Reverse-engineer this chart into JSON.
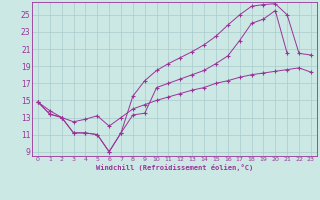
{
  "xlabel": "Windchill (Refroidissement éolien,°C)",
  "bg_color": "#cce8e4",
  "grid_color": "#aacccc",
  "line_color": "#993399",
  "xlim": [
    -0.5,
    23.5
  ],
  "ylim": [
    8.5,
    26.5
  ],
  "xticks": [
    0,
    1,
    2,
    3,
    4,
    5,
    6,
    7,
    8,
    9,
    10,
    11,
    12,
    13,
    14,
    15,
    16,
    17,
    18,
    19,
    20,
    21,
    22,
    23
  ],
  "yticks": [
    9,
    11,
    13,
    15,
    17,
    19,
    21,
    23,
    25
  ],
  "line1_x": [
    0,
    1,
    2,
    3,
    4,
    5,
    6,
    7,
    8,
    9,
    10,
    11,
    12,
    13,
    14,
    15,
    16,
    17,
    18,
    19,
    20,
    21
  ],
  "line1_y": [
    14.8,
    13.4,
    13.0,
    11.2,
    11.2,
    11.0,
    9.0,
    11.2,
    13.3,
    13.5,
    16.5,
    17.0,
    17.5,
    18.0,
    18.5,
    19.3,
    20.2,
    22.0,
    24.0,
    24.5,
    25.5,
    20.5
  ],
  "line2_x": [
    0,
    1,
    2,
    3,
    4,
    5,
    6,
    7,
    8,
    9,
    10,
    11,
    12,
    13,
    14,
    15,
    16,
    17,
    18,
    19,
    20,
    21,
    22,
    23
  ],
  "line2_y": [
    14.8,
    13.4,
    13.0,
    11.2,
    11.2,
    11.0,
    9.0,
    11.2,
    15.5,
    17.3,
    18.5,
    19.3,
    20.0,
    20.7,
    21.5,
    22.5,
    23.8,
    25.0,
    26.0,
    26.2,
    26.3,
    25.0,
    20.5,
    20.3
  ],
  "line3_x": [
    0,
    1,
    2,
    3,
    4,
    5,
    6,
    7,
    8,
    9,
    10,
    11,
    12,
    13,
    14,
    15,
    16,
    17,
    18,
    19,
    20,
    21,
    22,
    23
  ],
  "line3_y": [
    14.8,
    13.8,
    13.0,
    12.5,
    12.8,
    13.2,
    12.0,
    13.0,
    14.0,
    14.5,
    15.0,
    15.4,
    15.8,
    16.2,
    16.5,
    17.0,
    17.3,
    17.7,
    18.0,
    18.2,
    18.4,
    18.6,
    18.8,
    18.3
  ]
}
